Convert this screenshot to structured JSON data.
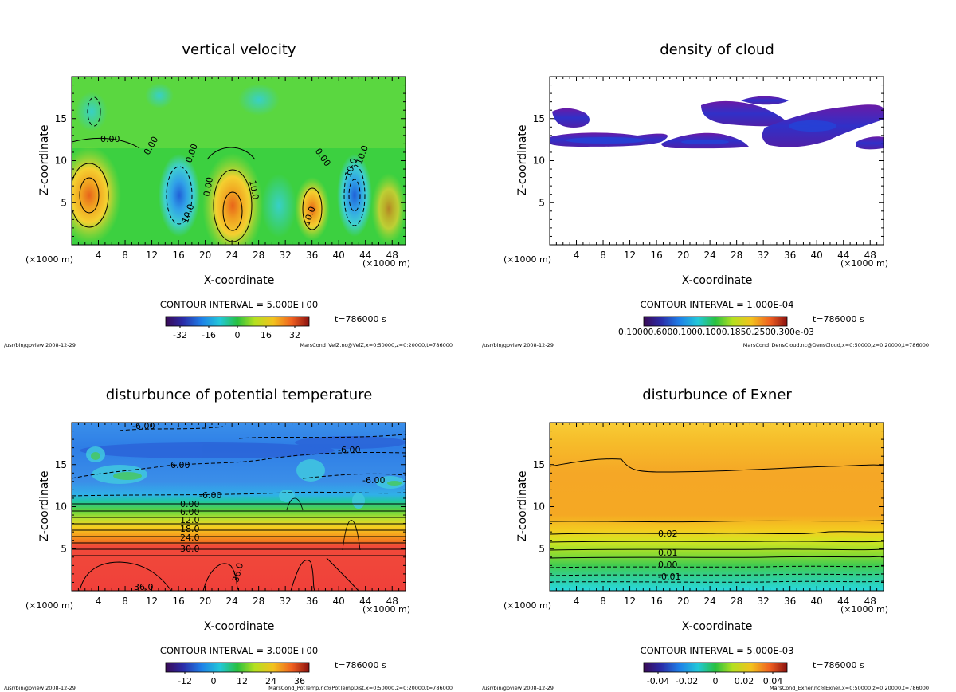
{
  "common": {
    "x_axis_label": "X-coordinate",
    "y_axis_label": "Z-coordinate",
    "unit_left": "(×1000 m)",
    "unit_right": "(×1000 m)",
    "time_label": "t=786000 s",
    "footer_left": "/usr/bin/gpview  2008-12-29"
  },
  "chart_data": [
    {
      "type": "heatmap",
      "title": "vertical velocity",
      "xlabel": "X-coordinate",
      "ylabel": "Z-coordinate",
      "xlim": [
        0,
        50
      ],
      "ylim": [
        0,
        20
      ],
      "xticks": [
        4,
        8,
        12,
        16,
        20,
        24,
        28,
        32,
        36,
        40,
        44,
        48
      ],
      "yticks": [
        5,
        10,
        15
      ],
      "contour_interval": "CONTOUR INTERVAL = 5.000E+00",
      "colorbar_ticks": [
        "-32",
        "-16",
        "0",
        "16",
        "32"
      ],
      "colorbar_values": [
        -32,
        -16,
        0,
        16,
        32
      ],
      "colorbar_range": [
        -40,
        40
      ],
      "contour_labels": [
        "0.00",
        "0.00",
        "0.00",
        "0.00",
        "10.0",
        "10.0",
        "10.0",
        "0.00",
        "10.0",
        "10.0"
      ],
      "time": "t=786000 s",
      "footer_right": "MarsCond_VelZ.nc@VelZ,x=0:50000,z=0:20000,t=786000"
    },
    {
      "type": "heatmap",
      "title": "density of cloud",
      "xlabel": "X-coordinate",
      "ylabel": "Z-coordinate",
      "xlim": [
        0,
        50
      ],
      "ylim": [
        0,
        20
      ],
      "xticks": [
        4,
        8,
        12,
        16,
        20,
        24,
        28,
        32,
        36,
        40,
        44,
        48
      ],
      "yticks": [
        5,
        10,
        15
      ],
      "contour_interval": "CONTOUR INTERVAL = 1.000E-04",
      "colorbar_ticks_text": "0.10000.6000.1000.1000.1850.2500.300e-03",
      "time": "t=786000 s",
      "footer_right": "MarsCond_DensCloud.nc@DensCloud,x=0:50000,z=0:20000,t=786000"
    },
    {
      "type": "heatmap",
      "title": "disturbunce of potential temperature",
      "xlabel": "X-coordinate",
      "ylabel": "Z-coordinate",
      "xlim": [
        0,
        50
      ],
      "ylim": [
        0,
        20
      ],
      "xticks": [
        4,
        8,
        12,
        16,
        20,
        24,
        28,
        32,
        36,
        40,
        44,
        48
      ],
      "yticks": [
        5,
        10,
        15
      ],
      "contour_interval": "CONTOUR INTERVAL = 3.000E+00",
      "colorbar_ticks": [
        "-12",
        "0",
        "12",
        "24",
        "36"
      ],
      "colorbar_values": [
        -12,
        0,
        12,
        24,
        36
      ],
      "colorbar_range": [
        -20,
        40
      ],
      "contour_labels": [
        "-6.00",
        "-6.00",
        "-6.00",
        "-6.00",
        "-6.00",
        "0.00",
        "6.00",
        "12.0",
        "18.0",
        "24.0",
        "30.0",
        "36.0",
        "36.0"
      ],
      "time": "t=786000 s",
      "footer_right": "MarsCond_PotTemp.nc@PotTempDist,x=0:50000,z=0:20000,t=786000"
    },
    {
      "type": "heatmap",
      "title": "disturbunce of Exner",
      "xlabel": "X-coordinate",
      "ylabel": "Z-coordinate",
      "xlim": [
        0,
        50
      ],
      "ylim": [
        0,
        20
      ],
      "xticks": [
        4,
        8,
        12,
        16,
        20,
        24,
        28,
        32,
        36,
        40,
        44,
        48
      ],
      "yticks": [
        5,
        10,
        15
      ],
      "contour_interval": "CONTOUR INTERVAL = 5.000E-03",
      "colorbar_ticks": [
        "-0.04",
        "-0.02",
        "0",
        "0.02",
        "0.04"
      ],
      "colorbar_values": [
        -0.04,
        -0.02,
        0,
        0.02,
        0.04
      ],
      "colorbar_range": [
        -0.05,
        0.05
      ],
      "contour_labels": [
        "0.02",
        "0.01",
        "0.00",
        "-0.01"
      ],
      "time": "t=786000 s",
      "footer_right": "MarsCond_Exner.nc@Exner,x=0:50000,z=0:20000,t=786000"
    }
  ]
}
